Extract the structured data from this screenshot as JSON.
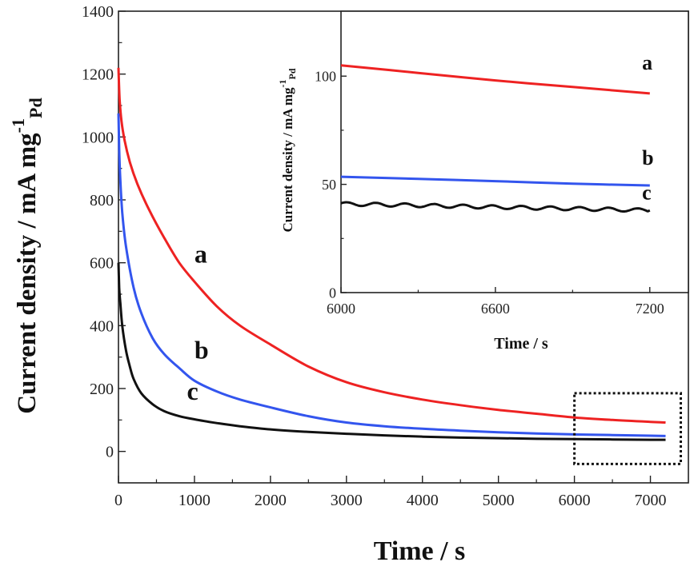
{
  "chart_data": [
    {
      "id": "main",
      "type": "line",
      "title": "",
      "xlabel": "Time / s",
      "ylabel": {
        "prefix": "Current density / mA mg",
        "sup": "-1",
        "sub": "Pd"
      },
      "xlim": [
        0,
        7500
      ],
      "ylim": [
        -100,
        1400
      ],
      "xticks": [
        0,
        1000,
        2000,
        3000,
        4000,
        5000,
        6000,
        7000
      ],
      "yticks": [
        0,
        200,
        400,
        600,
        800,
        1000,
        1200,
        1400
      ],
      "grid": false,
      "legend": "none",
      "series": [
        {
          "name": "a",
          "color": "#ee2222",
          "x": [
            0,
            15,
            40,
            80,
            150,
            250,
            400,
            600,
            800,
            1000,
            1300,
            1600,
            2000,
            2500,
            3000,
            3500,
            4000,
            4500,
            5000,
            5500,
            6000,
            6500,
            7000,
            7200
          ],
          "y": [
            1220,
            1120,
            1050,
            990,
            920,
            850,
            770,
            680,
            600,
            540,
            460,
            400,
            340,
            270,
            220,
            188,
            165,
            147,
            132,
            120,
            108,
            100,
            94,
            92
          ]
        },
        {
          "name": "b",
          "color": "#3355ee",
          "x": [
            0,
            10,
            25,
            50,
            100,
            200,
            300,
            450,
            600,
            800,
            1000,
            1300,
            1600,
            2000,
            2500,
            3000,
            3500,
            4000,
            4500,
            5000,
            5500,
            6000,
            6500,
            7000,
            7200
          ],
          "y": [
            1075,
            960,
            860,
            760,
            650,
            520,
            440,
            360,
            310,
            265,
            225,
            190,
            165,
            140,
            112,
            92,
            80,
            72,
            66,
            61,
            57,
            54,
            52,
            50,
            49
          ]
        },
        {
          "name": "c",
          "color": "#111111",
          "x": [
            0,
            10,
            25,
            50,
            100,
            150,
            200,
            300,
            450,
            600,
            800,
            1000,
            1300,
            1600,
            2000,
            2500,
            3000,
            3500,
            4000,
            4500,
            5000,
            5500,
            6000,
            6500,
            7000,
            7200
          ],
          "y": [
            600,
            520,
            470,
            400,
            320,
            270,
            230,
            185,
            150,
            128,
            112,
            102,
            90,
            80,
            70,
            62,
            56,
            51,
            47,
            44,
            42,
            40,
            39,
            38,
            37,
            37
          ]
        }
      ],
      "annotations": [
        {
          "text": "a",
          "series": "a",
          "x": 1000,
          "y": 600
        },
        {
          "text": "b",
          "series": "b",
          "x": 1000,
          "y": 295
        },
        {
          "text": "c",
          "series": "c",
          "x": 900,
          "y": 165
        }
      ],
      "highlight_box": {
        "x": [
          6000,
          7400
        ],
        "y": [
          -40,
          185
        ],
        "style": "dotted"
      }
    },
    {
      "id": "inset",
      "type": "line",
      "title": "",
      "xlabel": "Time / s",
      "ylabel": {
        "prefix": "Current density / mA mg",
        "sup": "-1",
        "sub": "Pd"
      },
      "xlim": [
        6000,
        7350
      ],
      "ylim": [
        0,
        130
      ],
      "xticks": [
        6000,
        6600,
        7200
      ],
      "yticks": [
        0,
        50,
        100
      ],
      "grid": false,
      "legend": "none",
      "series": [
        {
          "name": "a",
          "color": "#ee2222",
          "x": [
            6000,
            6300,
            6600,
            6900,
            7200
          ],
          "y": [
            105,
            101.5,
            98,
            95,
            92
          ]
        },
        {
          "name": "b",
          "color": "#3355ee",
          "x": [
            6000,
            6300,
            6600,
            6900,
            7200
          ],
          "y": [
            53.5,
            52.5,
            51.5,
            50.3,
            49.5
          ]
        },
        {
          "name": "c",
          "color": "#111111",
          "x": [
            6000,
            6300,
            6600,
            6900,
            7200
          ],
          "y": [
            41,
            40.3,
            39.5,
            38.8,
            38
          ],
          "wavy": true
        }
      ],
      "annotations": [
        {
          "text": "a",
          "series": "a",
          "x": 7170,
          "y": 103
        },
        {
          "text": "b",
          "series": "b",
          "x": 7170,
          "y": 59
        },
        {
          "text": "c",
          "series": "c",
          "x": 7170,
          "y": 43
        }
      ]
    }
  ]
}
